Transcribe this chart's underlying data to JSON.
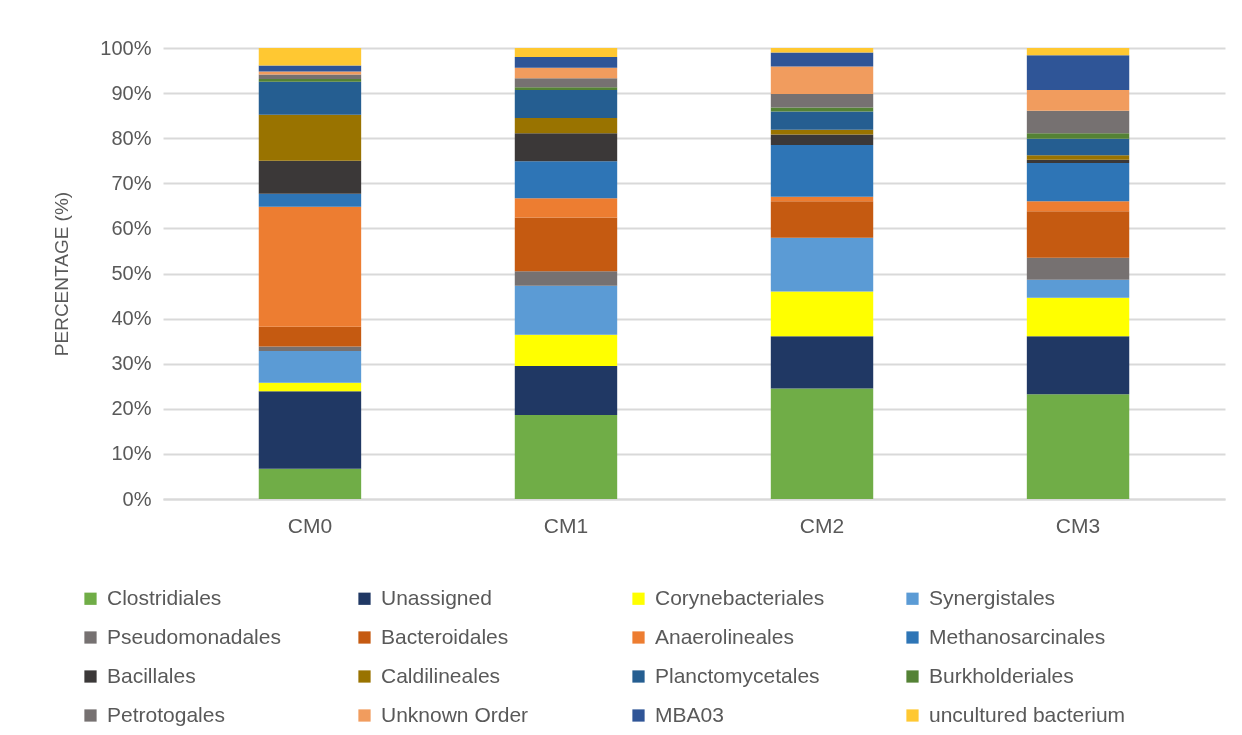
{
  "chart_data": {
    "type": "bar",
    "stacked": true,
    "ylabel": "PERCENTAGE (%)",
    "categories": [
      "CM0",
      "CM1",
      "CM2",
      "CM3"
    ],
    "ylim": [
      0,
      100
    ],
    "yticks": [
      {
        "value": 0,
        "label": "0%"
      },
      {
        "value": 10,
        "label": "10%"
      },
      {
        "value": 20,
        "label": "20%"
      },
      {
        "value": 30,
        "label": "30%"
      },
      {
        "value": 40,
        "label": "40%"
      },
      {
        "value": 50,
        "label": "50%"
      },
      {
        "value": 60,
        "label": "60%"
      },
      {
        "value": 70,
        "label": "70%"
      },
      {
        "value": 80,
        "label": "80%"
      },
      {
        "value": 90,
        "label": "90%"
      },
      {
        "value": 100,
        "label": "100%"
      }
    ],
    "grid": "y",
    "legend": "bottom",
    "series": [
      {
        "name": "Clostridiales",
        "color": "#70ad47",
        "values": [
          6.7,
          18.6,
          24.5,
          23.2
        ]
      },
      {
        "name": "Unassigned",
        "color": "#203864",
        "values": [
          17.2,
          10.9,
          11.6,
          12.9
        ]
      },
      {
        "name": "Corynebacteriales",
        "color": "#ffff00",
        "values": [
          1.9,
          6.9,
          9.9,
          8.5
        ]
      },
      {
        "name": "Synergistales",
        "color": "#5b9bd5",
        "values": [
          7.0,
          10.9,
          11.9,
          4.0
        ]
      },
      {
        "name": "Pseudomonadales",
        "color": "#767171",
        "values": [
          1.0,
          3.2,
          null,
          4.9
        ]
      },
      {
        "name": "Bacteroidales",
        "color": "#c55a11",
        "values": [
          4.4,
          11.9,
          8.1,
          10.3
        ]
      },
      {
        "name": "Anaerolineales",
        "color": "#ed7d31",
        "values": [
          26.6,
          4.3,
          1.0,
          2.2
        ]
      },
      {
        "name": "Methanosarcinales",
        "color": "#2e75b6",
        "values": [
          2.9,
          8.2,
          11.5,
          8.5
        ]
      },
      {
        "name": "Bacillales",
        "color": "#3b3838",
        "values": [
          7.3,
          6.2,
          2.3,
          0.7
        ]
      },
      {
        "name": "Caldilineales",
        "color": "#997300",
        "values": [
          10.2,
          3.4,
          1.1,
          1.0
        ]
      },
      {
        "name": "Planctomycetales",
        "color": "#255e91",
        "values": [
          7.3,
          6.2,
          4.0,
          3.7
        ]
      },
      {
        "name": "Burkholderiales",
        "color": "#548235",
        "values": [
          0.6,
          0.6,
          0.9,
          1.2
        ]
      },
      {
        "name": "Petrotogales",
        "color": "#767171",
        "values": [
          1.0,
          2.0,
          3.0,
          5.0
        ]
      },
      {
        "name": "Unknown Order",
        "color": "#f19c5e",
        "values": [
          0.7,
          2.3,
          6.1,
          4.6
        ]
      },
      {
        "name": "MBA03",
        "color": "#2f5597",
        "values": [
          1.3,
          2.4,
          3.1,
          7.7
        ]
      },
      {
        "name": "uncultured bacterium",
        "color": "#ffc832",
        "values": [
          3.9,
          2.0,
          1.0,
          1.6
        ]
      }
    ]
  }
}
